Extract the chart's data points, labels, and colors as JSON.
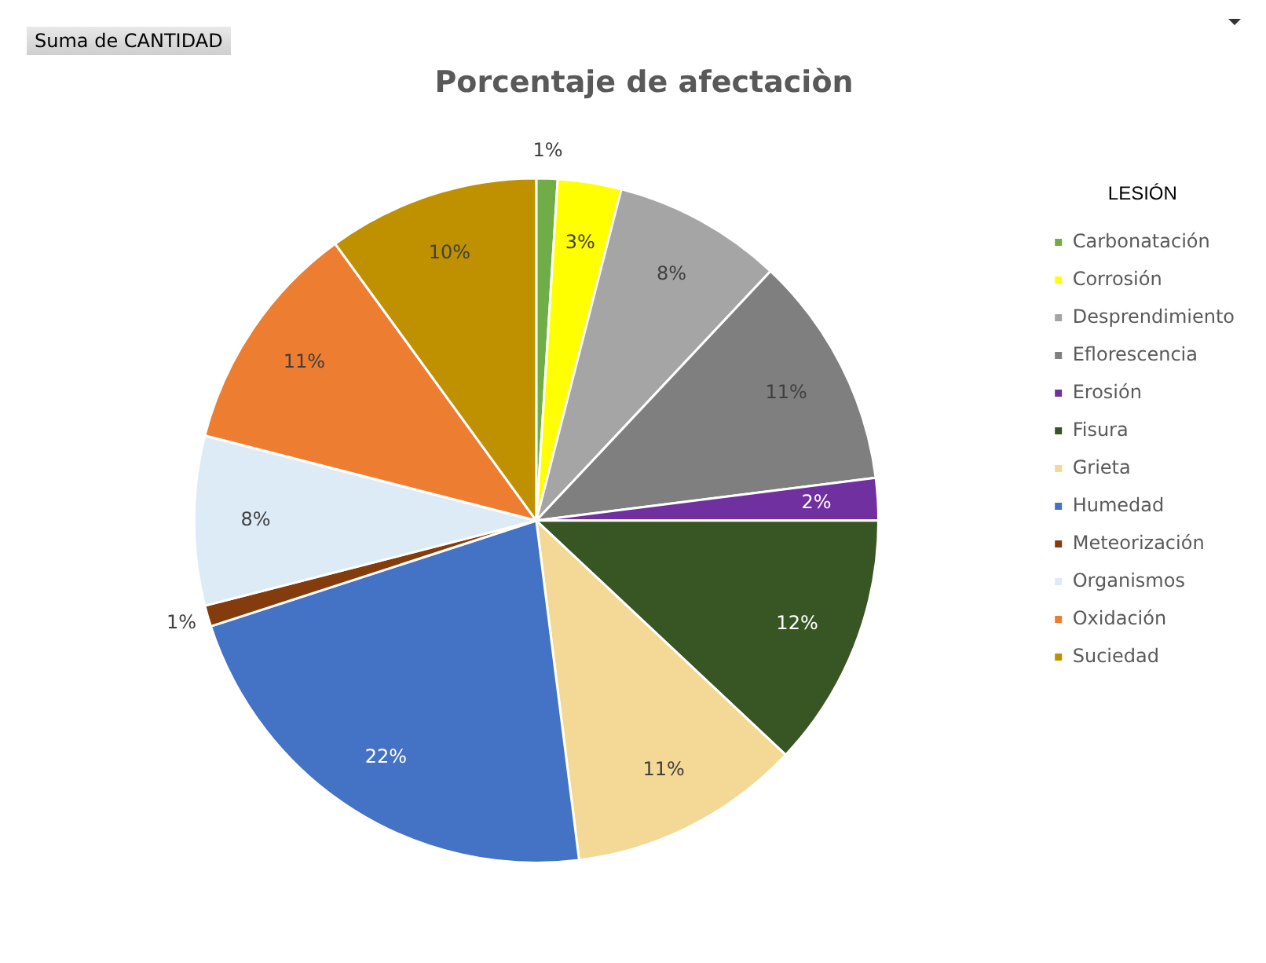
{
  "chart_data": {
    "type": "pie",
    "title": "Porcentaje de afectaciòn",
    "legend_title": "LESIÓN",
    "legend": "right",
    "annotations": [
      "Suma de CANTIDAD"
    ],
    "categories": [
      "Carbonatación",
      "Corrosión",
      "Desprendimiento",
      "Eflorescencia",
      "Erosión",
      "Fisura",
      "Grieta",
      "Humedad",
      "Meteorización",
      "Organismos",
      "Oxidación",
      "Suciedad"
    ],
    "values": [
      1,
      3,
      8,
      11,
      2,
      12,
      11,
      22,
      1,
      8,
      11,
      10
    ],
    "value_labels": [
      "1%",
      "3%",
      "8%",
      "11%",
      "2%",
      "12%",
      "11%",
      "22%",
      "1%",
      "8%",
      "11%",
      "10%"
    ],
    "colors": [
      "#70ad47",
      "#ffff00",
      "#a5a5a5",
      "#7f7f7f",
      "#7030a0",
      "#375623",
      "#f4d996",
      "#4472c4",
      "#843c0c",
      "#ddebf7",
      "#ed7d31",
      "#bf9000"
    ]
  }
}
